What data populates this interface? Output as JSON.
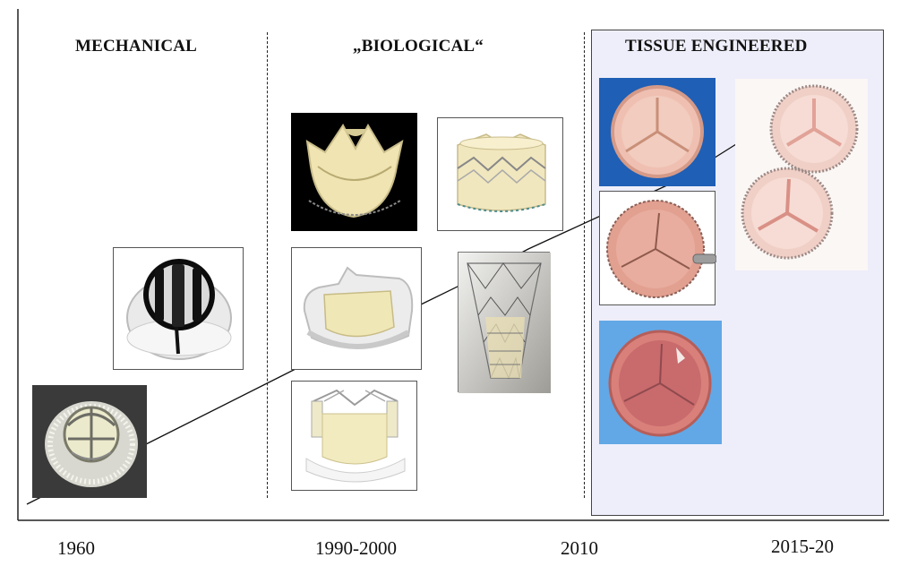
{
  "headings": {
    "mechanical": "MECHANICAL",
    "biological": "„BIOLOGICAL“",
    "tissue_engineered": "TISSUE ENGINEERED"
  },
  "timeline": {
    "years": [
      "1960",
      "1990-2000",
      "2010",
      "2015-20"
    ]
  },
  "colors": {
    "tissue_panel_bg": "#eeeefa",
    "blue_photo_bg": "#1f5fb5",
    "light_blue_photo_bg": "#62a8e6",
    "black_photo_bg": "#000000",
    "tissue_pink": "#e9a796",
    "valve_cream": "#eee4b4"
  },
  "images": [
    {
      "name": "mechanical-caged-valve-photo"
    },
    {
      "name": "mechanical-tilting-disc-valve-photo"
    },
    {
      "name": "stented-porcine-bioprosthesis-photo"
    },
    {
      "name": "pericardial-bioprosthesis-photo"
    },
    {
      "name": "stentless-bioprosthesis-photo"
    },
    {
      "name": "sutureless-valve-photo"
    },
    {
      "name": "transcatheter-valve-photo"
    },
    {
      "name": "tissue-engineered-valve-blue-photo"
    },
    {
      "name": "tissue-engineered-valve-held-photo"
    },
    {
      "name": "tissue-engineered-valve-light-blue-photo"
    },
    {
      "name": "tissue-engineered-stented-valves-photo"
    }
  ]
}
